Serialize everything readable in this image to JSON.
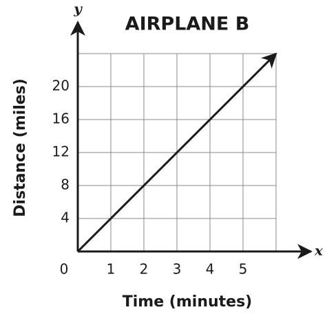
{
  "chart_data": {
    "type": "line",
    "title": "AIRPLANE B",
    "x_label": "Time (minutes)",
    "y_label": "Distance (miles)",
    "x_axis_symbol": "x",
    "y_axis_symbol": "y",
    "x": [
      0,
      6
    ],
    "series": [
      {
        "color": "#1a1a1a",
        "values": [
          0,
          24
        ]
      }
    ],
    "xlim": [
      0,
      6
    ],
    "ylim": [
      0,
      24
    ],
    "xticks": [
      0,
      1,
      2,
      3,
      4,
      5
    ],
    "yticks": [
      4,
      8,
      12,
      16,
      20
    ],
    "grid": true
  }
}
